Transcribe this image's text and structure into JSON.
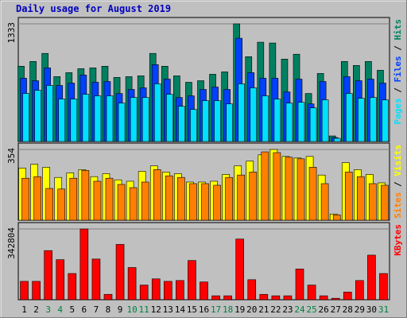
{
  "chart_data": {
    "type": "bar",
    "title": "Daily usage for August 2019",
    "categories": [
      "1",
      "2",
      "3",
      "4",
      "5",
      "6",
      "7",
      "8",
      "9",
      "10",
      "11",
      "12",
      "13",
      "14",
      "15",
      "16",
      "17",
      "18",
      "19",
      "20",
      "21",
      "22",
      "23",
      "24",
      "25",
      "26",
      "27",
      "28",
      "29",
      "30",
      "31"
    ],
    "weekend": [
      "3",
      "4",
      "10",
      "11",
      "17",
      "18",
      "24",
      "25",
      "31"
    ],
    "weekend_color": "#008040",
    "legend_separator": "/",
    "panels": [
      {
        "ylim": [
          0,
          1333
        ],
        "yticks": [
          1333
        ],
        "series": [
          {
            "name": "Hits",
            "color": "#008060",
            "values": [
              853,
              907,
              998,
              735,
              780,
              825,
              834,
              853,
              726,
              735,
              744,
              998,
              853,
              744,
              671,
              689,
              762,
              789,
              1333,
              961,
              1125,
              1116,
              934,
              989,
              544,
              771,
              63,
              907,
              862,
              907,
              807
            ]
          },
          {
            "name": "Files",
            "color": "#0040ff",
            "values": [
              717,
              689,
              834,
              635,
              662,
              753,
              671,
              680,
              544,
              590,
              608,
              871,
              707,
              499,
              517,
              590,
              617,
              590,
              1170,
              780,
              717,
              717,
              562,
              707,
              426,
              680,
              45,
              735,
              689,
              707,
              662
            ]
          },
          {
            "name": "Pages",
            "color": "#00e0ff",
            "values": [
              544,
              580,
              635,
              481,
              481,
              535,
              517,
              517,
              435,
              499,
              499,
              653,
              535,
              399,
              363,
              463,
              463,
              426,
              653,
              608,
              517,
              481,
              435,
              444,
              381,
              472,
              36,
              544,
              490,
              499,
              472
            ]
          }
        ]
      },
      {
        "ylim": [
          0,
          354
        ],
        "yticks": [
          354
        ],
        "series": [
          {
            "name": "Visits",
            "color": "#ffff00",
            "values": [
              261,
              280,
              265,
              214,
              237,
              253,
              218,
              233,
              202,
              195,
              245,
              272,
              241,
              233,
              191,
              191,
              195,
              229,
              272,
              296,
              327,
              354,
              319,
              311,
              319,
              226,
              31,
              288,
              253,
              229,
              187
            ]
          },
          {
            "name": "Sites",
            "color": "#ff8000",
            "values": [
              210,
              218,
              159,
              156,
              210,
              249,
              195,
              210,
              179,
              163,
              191,
              253,
              222,
              214,
              183,
              183,
              175,
              214,
              226,
              241,
              342,
              338,
              315,
              307,
              265,
              183,
              27,
              241,
              218,
              183,
              175
            ]
          }
        ]
      },
      {
        "ylim": [
          0,
          342804
        ],
        "yticks": [
          342804
        ],
        "series": [
          {
            "name": "KBytes",
            "color": "#ff0000",
            "values": [
              89000,
              89000,
              238000,
              194000,
              127000,
              342804,
              197000,
              26000,
              268000,
              156000,
              71000,
              101000,
              89000,
              93000,
              190000,
              86000,
              19000,
              19000,
              294000,
              97000,
              26000,
              19000,
              19000,
              149000,
              71000,
              19000,
              7000,
              37000,
              93000,
              216000,
              127000
            ]
          }
        ]
      }
    ]
  }
}
